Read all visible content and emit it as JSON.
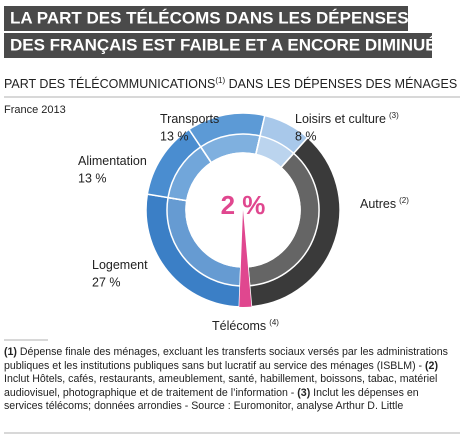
{
  "chart_data": {
    "type": "donut",
    "title": [
      "LA PART DES TÉLÉCOMS DANS LES DÉPENSES",
      "DES FRANÇAIS EST FAIBLE ET A ENCORE DIMINUÉ"
    ],
    "subtitle": [
      "PART DES TÉLÉCOMMUNICATIONS",
      "(1)",
      " DANS LES DÉPENSES DES MÉNAGES"
    ],
    "region_year": "France 2013",
    "categories": [
      "Télécoms",
      "Logement",
      "Alimentation",
      "Transports",
      "Loisirs et culture",
      "Autres"
    ],
    "category_notes": [
      "(4)",
      null,
      null,
      null,
      "(3)",
      "(2)"
    ],
    "values": [
      2,
      27,
      13,
      13,
      8,
      37
    ],
    "value_labels": [
      null,
      "27 %",
      "13 %",
      "13 %",
      "8 %",
      null
    ],
    "colors": [
      "#e0478f",
      "#3b7fc6",
      "#4a8dd0",
      "#5c9ad6",
      "#a8c8ea",
      "#3a3a3a"
    ],
    "highlight_label": "2 %",
    "footnotes": [
      {
        "ref": "(1)",
        "text": " Dépense finale des ménages, excluant les transferts sociaux versés par les administrations publiques et les institutions publiques sans but lucratif au service des ménages (ISBLM) - "
      },
      {
        "ref": "(2)",
        "text": " Inclut  Hôtels, cafés, restaurants, ameublement, santé, habillement, boissons, tabac, matériel audiovisuel, photographique et de traitement de l’information - "
      },
      {
        "ref": "(3)",
        "text": " Inclut les dépenses en services télécoms; données arrondies - Source : Euromonitor, analyse Arthur D. Little"
      }
    ]
  }
}
